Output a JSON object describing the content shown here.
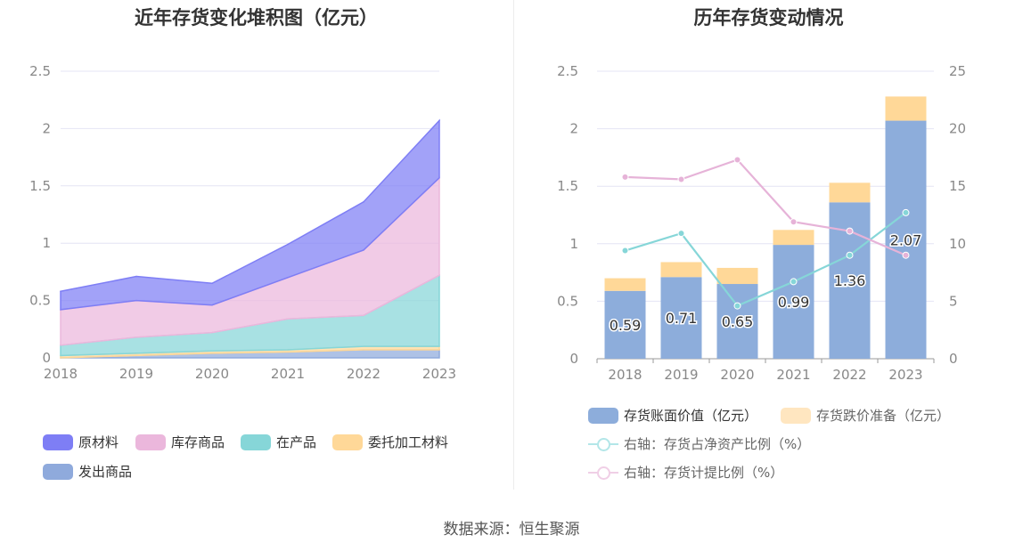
{
  "chart_data": [
    {
      "type": "area",
      "stacked": true,
      "title": "近年存货变化堆积图（亿元）",
      "categories": [
        "2018",
        "2019",
        "2020",
        "2021",
        "2022",
        "2023"
      ],
      "ylim": [
        0,
        2.5
      ],
      "yticks": [
        "0",
        "0.5",
        "1",
        "1.5",
        "2",
        "2.5"
      ],
      "series": [
        {
          "name": "发出商品",
          "color": "#8faadc",
          "values": [
            0.0,
            0.02,
            0.04,
            0.05,
            0.07,
            0.07
          ]
        },
        {
          "name": "委托加工材料",
          "color": "#ffd898",
          "values": [
            0.02,
            0.02,
            0.02,
            0.02,
            0.03,
            0.03
          ]
        },
        {
          "name": "在产品",
          "color": "#86d6d8",
          "values": [
            0.09,
            0.14,
            0.16,
            0.27,
            0.27,
            0.62
          ]
        },
        {
          "name": "库存商品",
          "color": "#ebb7dc",
          "values": [
            0.31,
            0.32,
            0.24,
            0.36,
            0.57,
            0.85
          ]
        },
        {
          "name": "原材料",
          "color": "#7e7ef5",
          "values": [
            0.16,
            0.21,
            0.19,
            0.29,
            0.42,
            0.5
          ]
        }
      ],
      "legend_order": [
        "原材料",
        "库存商品",
        "在产品",
        "委托加工材料",
        "发出商品"
      ],
      "legend_position": "bottom"
    },
    {
      "type": "bar",
      "stacked": true,
      "title": "历年存货变动情况",
      "categories": [
        "2018",
        "2019",
        "2020",
        "2021",
        "2022",
        "2023"
      ],
      "ylim": [
        0,
        2.5
      ],
      "yticks": [
        "0",
        "0.5",
        "1",
        "1.5",
        "2",
        "2.5"
      ],
      "y2lim": [
        0,
        25
      ],
      "y2ticks": [
        "0",
        "5",
        "10",
        "15",
        "20",
        "25"
      ],
      "bar_series": [
        {
          "name": "存货账面价值（亿元）",
          "color": "#8daddb",
          "values": [
            0.59,
            0.71,
            0.65,
            0.99,
            1.36,
            2.07
          ],
          "labels": [
            "0.59",
            "0.71",
            "0.65",
            "0.99",
            "1.36",
            "2.07"
          ]
        },
        {
          "name": "存货跌价准备（亿元）",
          "color": "#ffd898",
          "values": [
            0.11,
            0.13,
            0.14,
            0.13,
            0.17,
            0.21
          ]
        }
      ],
      "line_series": [
        {
          "name": "右轴：存货占净资产比例（%）",
          "color": "#86d6d8",
          "axis": "right",
          "values": [
            9.4,
            10.9,
            4.6,
            6.7,
            9.0,
            12.7
          ]
        },
        {
          "name": "右轴：存货计提比例（%）",
          "color": "#e6b3d8",
          "axis": "right",
          "values": [
            15.8,
            15.6,
            17.3,
            11.9,
            11.1,
            9.0
          ]
        }
      ],
      "legend_position": "bottom"
    }
  ],
  "source": "数据来源：恒生聚源"
}
